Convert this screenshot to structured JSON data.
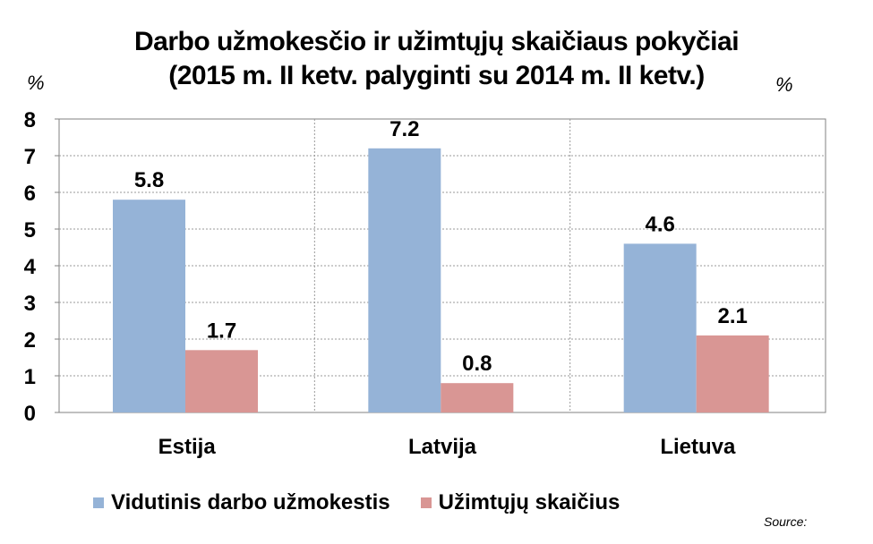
{
  "chart_data": {
    "type": "bar",
    "title_lines": [
      "Darbo užmokesčio ir užimtųjų skaičiaus pokyčiai",
      "(2015 m. II ketv. palyginti su 2014 m. II ketv.)"
    ],
    "ylabel_left": "%",
    "ylabel_right": "%",
    "categories": [
      "Estija",
      "Latvija",
      "Lietuva"
    ],
    "series": [
      {
        "name": "Vidutinis darbo užmokestis",
        "values": [
          5.8,
          7.2,
          4.6
        ],
        "color": "#95B3D7"
      },
      {
        "name": "Užimtųjų skaičius",
        "values": [
          1.7,
          0.8,
          2.1
        ],
        "color": "#D99694"
      }
    ],
    "ylim": [
      0,
      8
    ],
    "yticks": [
      0,
      1,
      2,
      3,
      4,
      5,
      6,
      7,
      8
    ],
    "grid": true,
    "legend_position": "bottom",
    "data_labels": true
  },
  "source_note": "Source:"
}
